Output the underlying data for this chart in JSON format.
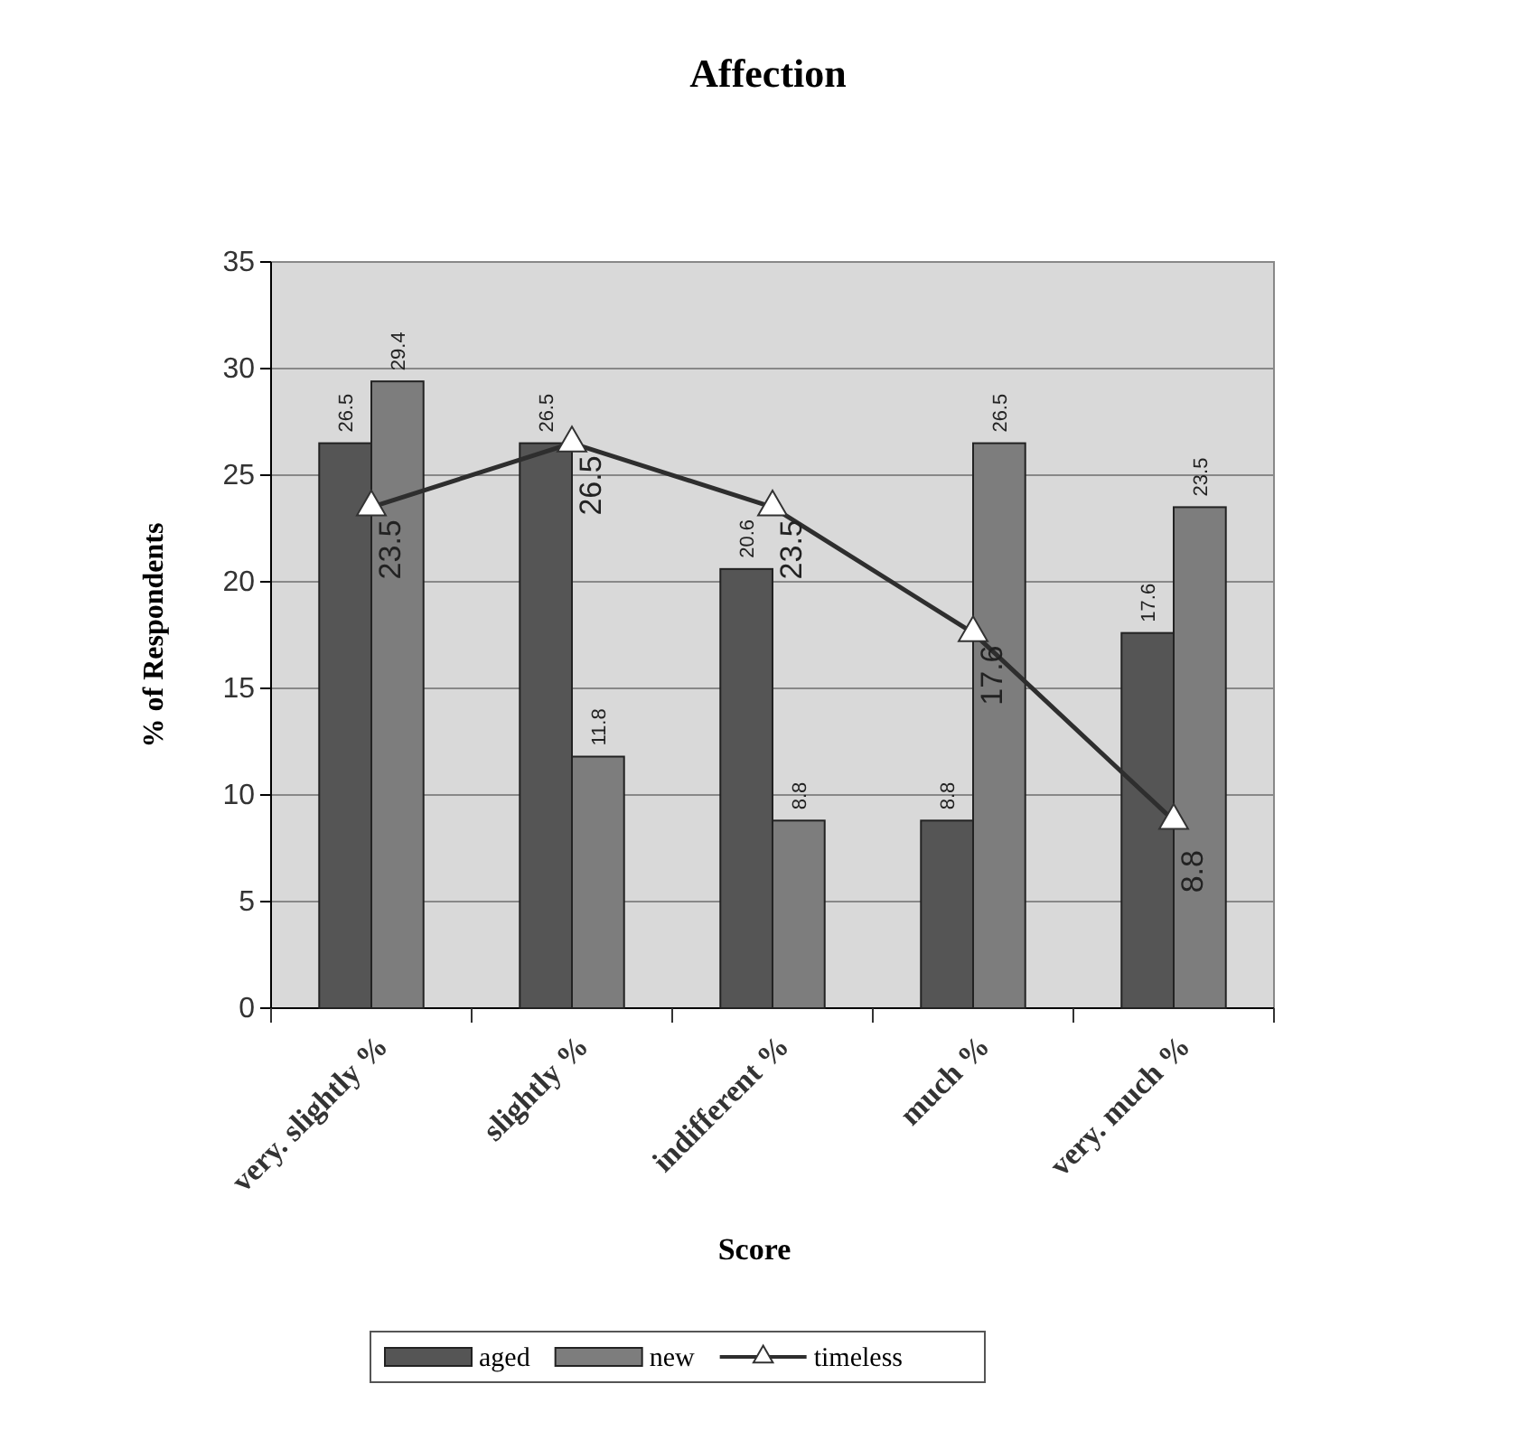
{
  "chart_data": {
    "type": "bar",
    "title": "Affection",
    "xlabel": "Score",
    "ylabel": "% of Respondents",
    "categories": [
      "very. slightly %",
      "slightly %",
      "indifferent %",
      "much %",
      "very. much %"
    ],
    "series": [
      {
        "name": "aged",
        "color": "#555555",
        "values": [
          26.5,
          26.5,
          20.6,
          8.8,
          17.6
        ]
      },
      {
        "name": "new",
        "color": "#7d7d7d",
        "values": [
          29.4,
          11.8,
          8.8,
          26.5,
          23.5
        ]
      },
      {
        "name": "timeless",
        "type": "line",
        "color": "#2e2e2e",
        "marker": "triangle",
        "values": [
          23.5,
          26.5,
          23.5,
          17.6,
          8.8
        ]
      }
    ],
    "ylim": [
      0,
      35
    ],
    "yticks": [
      0,
      5,
      10,
      15,
      20,
      25,
      30,
      35
    ],
    "grid": "y",
    "legend": "bottom",
    "data_labels": true
  }
}
